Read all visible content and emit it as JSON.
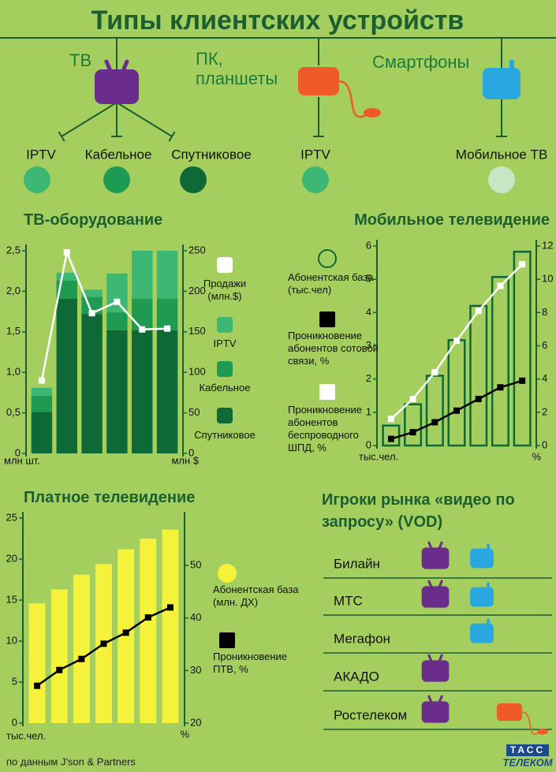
{
  "header": {
    "title": "Типы клиентских устройств"
  },
  "devices": [
    {
      "label": "ТВ",
      "icon": "tv",
      "types": [
        {
          "label": "IPTV",
          "color": "#3db874"
        },
        {
          "label": "Кабельное",
          "color": "#1f9a52"
        },
        {
          "label": "Спутниковое",
          "color": "#0d6a36"
        }
      ]
    },
    {
      "label": "ПК, планшеты",
      "icon": "pc",
      "types": [
        {
          "label": "IPTV",
          "color": "#3db874"
        }
      ]
    },
    {
      "label": "Смартфоны",
      "icon": "phone",
      "types": [
        {
          "label": "Мобильное ТВ",
          "color": "#c8e6c4"
        }
      ]
    }
  ],
  "chart_data": [
    {
      "type": "bar",
      "title": "ТВ-оборудование",
      "stacked": true,
      "categories": [
        null,
        null,
        null,
        null,
        null,
        null
      ],
      "y_label": "млн шт.",
      "y2_label": "млн $",
      "ylim": [
        0,
        2.5
      ],
      "yticks": [
        0,
        {
          "value": 0.5,
          "label": "0,5"
        },
        {
          "value": 1,
          "label": "1,0"
        },
        {
          "value": 1.5,
          "label": "1,5"
        },
        {
          "value": 2,
          "label": "2,0"
        },
        {
          "value": 2.5,
          "label": "2,5"
        }
      ],
      "y2lim": [
        0,
        250
      ],
      "y2ticks": [
        0,
        50,
        100,
        150,
        200,
        250
      ],
      "series": [
        {
          "name": "Продажи (млн.$)",
          "type": "line",
          "axis": "y2",
          "color": "#ffffff",
          "values": [
            90,
            248,
            173,
            187,
            153,
            154
          ]
        },
        {
          "name": "IPTV",
          "color": "#3db874",
          "values": [
            0.1,
            0.1,
            0.09,
            0.48,
            0.59,
            0.59
          ]
        },
        {
          "name": "Кабельное",
          "color": "#1f9a52",
          "values": [
            0.2,
            0.22,
            0.21,
            0.22,
            0.39,
            0.39
          ]
        },
        {
          "name": "Спутниковое",
          "color": "#0d6a36",
          "values": [
            0.51,
            1.91,
            1.72,
            1.52,
            1.52,
            1.52
          ]
        }
      ]
    },
    {
      "type": "bar",
      "title": "Мобильное телевидение",
      "stacked": false,
      "categories": [
        null,
        null,
        null,
        null,
        null,
        null,
        null
      ],
      "y_label": "тыс.чел.",
      "y2_label": "%",
      "ylim": [
        0,
        6
      ],
      "yticks": [
        0,
        1,
        2,
        3,
        4,
        5,
        6
      ],
      "y2lim": [
        0,
        12
      ],
      "y2ticks": [
        0,
        2,
        4,
        6,
        8,
        10,
        12
      ],
      "series": [
        {
          "name": "Абонентская база (тыс.чел)",
          "color": "#0d6a36",
          "filled": false,
          "values": [
            0.6,
            1.24,
            2.1,
            3.17,
            4.2,
            5.07,
            5.83
          ]
        },
        {
          "name": "Проникновение абонентов сотовой связи, %",
          "type": "line",
          "axis": "y2",
          "color": "#000000",
          "values": [
            0.4,
            0.8,
            1.4,
            2.1,
            2.8,
            3.5,
            3.9
          ]
        },
        {
          "name": "Проникновение абонентов беспроводного ШПД, %",
          "type": "line",
          "axis": "y2",
          "color": "#ffffff",
          "values": [
            1.6,
            2.8,
            4.4,
            6.3,
            8.1,
            9.6,
            10.9
          ]
        }
      ]
    },
    {
      "type": "bar",
      "title": "Платное телевидение",
      "stacked": false,
      "categories": [
        null,
        null,
        null,
        null,
        null,
        null,
        null
      ],
      "y_label": "тыс.чел.",
      "y2_label": "%",
      "ylim": [
        0,
        25
      ],
      "yticks": [
        0,
        5,
        10,
        15,
        20,
        25
      ],
      "y2lim": [
        20,
        59
      ],
      "y2ticks": [
        20,
        30,
        40,
        50
      ],
      "series": [
        {
          "name": "Абонентская база (млн. ДХ)",
          "color": "#f4f23a",
          "filled": true,
          "values": [
            14.6,
            16.3,
            18.1,
            19.4,
            21.2,
            22.5,
            23.6
          ]
        },
        {
          "name": "Проникновение ПТВ, %",
          "type": "line",
          "axis": "y2",
          "color": "#000000",
          "values": [
            27.1,
            30.1,
            32.2,
            35.1,
            37.2,
            40.1,
            42
          ]
        }
      ]
    }
  ],
  "vod": {
    "title": "Игроки рынка «видео по запросу» (VOD)",
    "rows": [
      {
        "name": "Билайн",
        "devices": [
          "tv",
          "phone"
        ]
      },
      {
        "name": "МТС",
        "devices": [
          "tv",
          "phone"
        ]
      },
      {
        "name": "Мегафон",
        "devices": [
          "phone"
        ]
      },
      {
        "name": "АКАДО",
        "devices": [
          "tv"
        ]
      },
      {
        "name": "Ростелеком",
        "devices": [
          "tv",
          "pc"
        ]
      }
    ]
  },
  "footer": {
    "source": "по данным J'son & Partners",
    "logo_top": "ТАСС",
    "logo_bottom": "ТЕЛЕКОМ"
  }
}
